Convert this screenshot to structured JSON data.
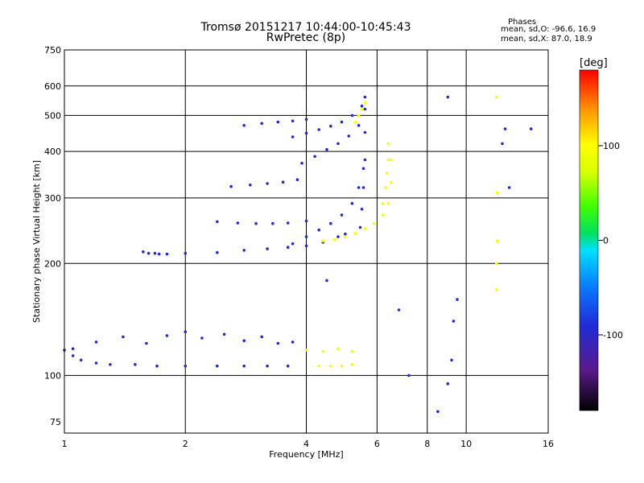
{
  "header": {
    "title_line1": "Tromsø 20151217 10:44:00-10:45:43",
    "title_line2": "RwPretec (8p)",
    "stats_heading": "Phases",
    "stats_o": "mean, sd,O: -96.6, 16.9",
    "stats_x": "mean, sd,X:  87.0, 18.9"
  },
  "colorbar": {
    "label": "[deg]",
    "range": [
      -180,
      180
    ],
    "ticks": [
      {
        "value": 100,
        "label": "100"
      },
      {
        "value": 0,
        "label": "0"
      },
      {
        "value": -100,
        "label": "-100"
      }
    ]
  },
  "chart_data": {
    "type": "scatter",
    "title": "Tromsø 20151217 10:44:00-10:45:43",
    "subtitle": "RwPretec (8p)",
    "xlabel": "Frequency [MHz]",
    "ylabel": "Stationary phase Virtual Height [km]",
    "xscale": "log",
    "yscale": "log",
    "xlim": [
      1,
      16
    ],
    "ylim": [
      70,
      750
    ],
    "xticks": [
      1,
      2,
      4,
      6,
      8,
      10,
      16
    ],
    "xtick_labels": [
      "1",
      "2",
      "4",
      "6",
      "8",
      "10",
      "16"
    ],
    "yticks": [
      75,
      100,
      200,
      300,
      400,
      500,
      600,
      750
    ],
    "ytick_labels": [
      "75",
      "100",
      "200",
      "300",
      "400",
      "500",
      "600",
      "750"
    ],
    "grid": true,
    "color_by": "phase (deg)",
    "series": [
      {
        "x": [
          1.0,
          1.05,
          1.1,
          1.2,
          1.3,
          1.5,
          1.7,
          2.0,
          2.4,
          2.8,
          3.2,
          3.6
        ],
        "y": [
          117,
          113,
          110,
          108,
          107,
          107,
          106,
          106,
          106,
          106,
          106,
          106
        ],
        "phase": -100
      },
      {
        "x": [
          1.05,
          1.2,
          1.4,
          1.6,
          1.8,
          2.0,
          2.2,
          2.5,
          2.8,
          3.1,
          3.4,
          3.7
        ],
        "y": [
          118,
          123,
          127,
          122,
          128,
          131,
          126,
          129,
          124,
          127,
          122,
          123
        ],
        "phase": -95
      },
      {
        "x": [
          1.57,
          1.62,
          1.68,
          1.72
        ],
        "y": [
          215,
          213,
          213,
          212
        ],
        "phase": -100
      },
      {
        "x": [
          1.8,
          2.0,
          2.4,
          2.8,
          3.2,
          3.6,
          4.0,
          4.4,
          4.8,
          5.0
        ],
        "y": [
          212,
          213,
          214,
          217,
          219,
          221,
          223,
          228,
          236,
          240
        ],
        "phase": -95
      },
      {
        "x": [
          2.4,
          2.7,
          3.0,
          3.3,
          3.6
        ],
        "y": [
          259,
          257,
          256,
          256,
          257
        ],
        "phase": -100
      },
      {
        "x": [
          2.6,
          2.9,
          3.2,
          3.5,
          3.8
        ],
        "y": [
          322,
          325,
          328,
          331,
          336
        ],
        "phase": -100
      },
      {
        "x": [
          2.8,
          3.1,
          3.4,
          3.7,
          4.0
        ],
        "y": [
          470,
          476,
          480,
          483,
          488
        ],
        "phase": -100
      },
      {
        "x": [
          3.7,
          4.0,
          4.3,
          4.6,
          4.9,
          5.2,
          5.4,
          5.55
        ],
        "y": [
          226,
          236,
          246,
          256,
          270,
          290,
          320,
          360
        ],
        "phase": -95
      },
      {
        "x": [
          5.45,
          5.5,
          5.55,
          5.6,
          5.6,
          5.6
        ],
        "y": [
          250,
          280,
          320,
          380,
          450,
          560
        ],
        "phase": -100
      },
      {
        "x": [
          3.9,
          4.2,
          4.5,
          4.8,
          5.1,
          5.4,
          5.6
        ],
        "y": [
          372,
          388,
          405,
          420,
          440,
          470,
          520
        ],
        "phase": -95
      },
      {
        "x": [
          3.7,
          4.0,
          4.3,
          4.6,
          4.9,
          5.2,
          5.5
        ],
        "y": [
          438,
          448,
          458,
          468,
          480,
          500,
          530
        ],
        "phase": -95
      },
      {
        "x": [
          4.4,
          4.7,
          5.0,
          5.3,
          5.6,
          5.9,
          6.2,
          6.4,
          6.5,
          6.5
        ],
        "y": [
          230,
          232,
          236,
          241,
          248,
          256,
          270,
          290,
          330,
          380
        ],
        "phase": 95
      },
      {
        "x": [
          6.2,
          6.3,
          6.35,
          6.4,
          6.4
        ],
        "y": [
          290,
          320,
          350,
          380,
          420
        ],
        "phase": 90
      },
      {
        "x": [
          4.3,
          4.6,
          4.9,
          5.2
        ],
        "y": [
          106,
          106,
          106,
          107
        ],
        "phase": 95
      },
      {
        "x": [
          4.0,
          4.4,
          4.8,
          5.2
        ],
        "y": [
          117,
          116,
          118,
          116
        ],
        "phase": 90
      },
      {
        "x": [
          5.3,
          5.4,
          5.5,
          5.6
        ],
        "y": [
          480,
          500,
          520,
          540
        ],
        "phase": 95
      },
      {
        "x": [
          11.9,
          11.9,
          11.95,
          11.95,
          11.9
        ],
        "y": [
          170,
          200,
          230,
          310,
          560
        ],
        "phase": 95
      },
      {
        "x": [
          8.5,
          9.0,
          9.2,
          9.3,
          9.5,
          9.0,
          12.5,
          12.3,
          12.8,
          14.5,
          6.8,
          7.2,
          4.0,
          4.5
        ],
        "y": [
          80,
          95,
          110,
          140,
          160,
          560,
          460,
          420,
          320,
          460,
          150,
          100,
          260,
          180
        ],
        "phase": -90
      }
    ]
  }
}
